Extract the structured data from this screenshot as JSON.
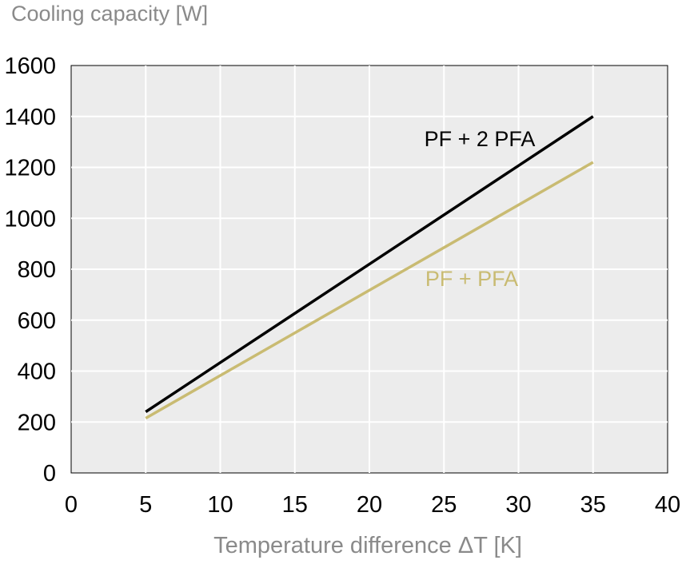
{
  "chart_data": {
    "type": "line",
    "ylabel": "Cooling capacity [W]",
    "xlabel": "Temperature difference ΔT [K]",
    "xlim": [
      0,
      40
    ],
    "ylim": [
      0,
      1600
    ],
    "x_ticks": [
      0,
      5,
      10,
      15,
      20,
      25,
      30,
      35,
      40
    ],
    "y_ticks": [
      0,
      200,
      400,
      600,
      800,
      1000,
      1200,
      1400,
      1600
    ],
    "x_tick_labels": [
      "0",
      "5",
      "10",
      "15",
      "20",
      "25",
      "30",
      "35",
      "40"
    ],
    "y_tick_labels": [
      "0",
      "200",
      "400",
      "600",
      "800",
      "1000",
      "1200",
      "1400",
      "1600"
    ],
    "grid": true,
    "plot_background": "#ececec",
    "series": [
      {
        "name": "PF + 2 PFA",
        "color": "#000000",
        "x": [
          5,
          35
        ],
        "y": [
          240,
          1400
        ]
      },
      {
        "name": "PF + PFA",
        "color": "#c9bb72",
        "x": [
          5,
          35
        ],
        "y": [
          215,
          1220
        ]
      }
    ]
  }
}
